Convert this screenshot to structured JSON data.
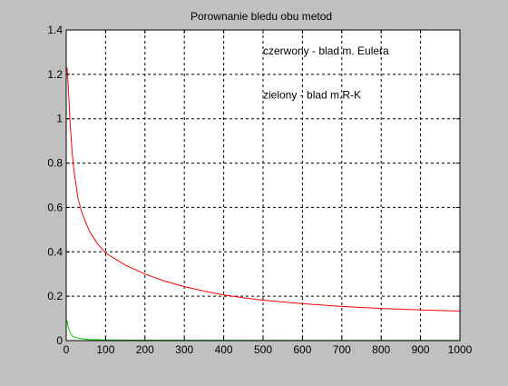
{
  "colors": {
    "figure_background": "#c0c0c0",
    "axes_background": "#ffffff",
    "grid": "#000000",
    "series_red": "#ff0000",
    "series_green": "#00cc00"
  },
  "chart_data": {
    "type": "line",
    "title": "Porownanie bledu obu metod",
    "xlabel": "",
    "ylabel": "",
    "xlim": [
      0,
      1000
    ],
    "ylim": [
      0,
      1.4
    ],
    "grid": true,
    "xticks": [
      0,
      100,
      200,
      300,
      400,
      500,
      600,
      700,
      800,
      900,
      1000
    ],
    "yticks": [
      0,
      0.2,
      0.4,
      0.6,
      0.8,
      1,
      1.2,
      1.4
    ],
    "annotations": [
      {
        "text": "czerwony - blad m. Eulera",
        "x": 500,
        "y": 1.29
      },
      {
        "text": "zielony - blad m.R-K",
        "x": 500,
        "y": 1.09
      }
    ],
    "series": [
      {
        "color": "#ff0000",
        "x": [
          2,
          5,
          10,
          15,
          20,
          30,
          40,
          50,
          60,
          80,
          100,
          150,
          200,
          250,
          300,
          350,
          400,
          450,
          500,
          600,
          700,
          800,
          900,
          1000
        ],
        "y": [
          1.23,
          1.15,
          0.98,
          0.85,
          0.76,
          0.64,
          0.575,
          0.53,
          0.49,
          0.435,
          0.395,
          0.34,
          0.3,
          0.268,
          0.243,
          0.223,
          0.206,
          0.193,
          0.182,
          0.166,
          0.154,
          0.145,
          0.138,
          0.133
        ]
      },
      {
        "color": "#00cc00",
        "x": [
          2,
          5,
          10,
          15,
          20,
          30,
          40,
          50,
          60,
          80,
          100,
          200,
          400,
          600,
          800,
          1000
        ],
        "y": [
          0.09,
          0.06,
          0.035,
          0.022,
          0.016,
          0.011,
          0.008,
          0.006,
          0.005,
          0.004,
          0.003,
          0.002,
          0.0015,
          0.001,
          0.001,
          0.001
        ]
      }
    ]
  }
}
